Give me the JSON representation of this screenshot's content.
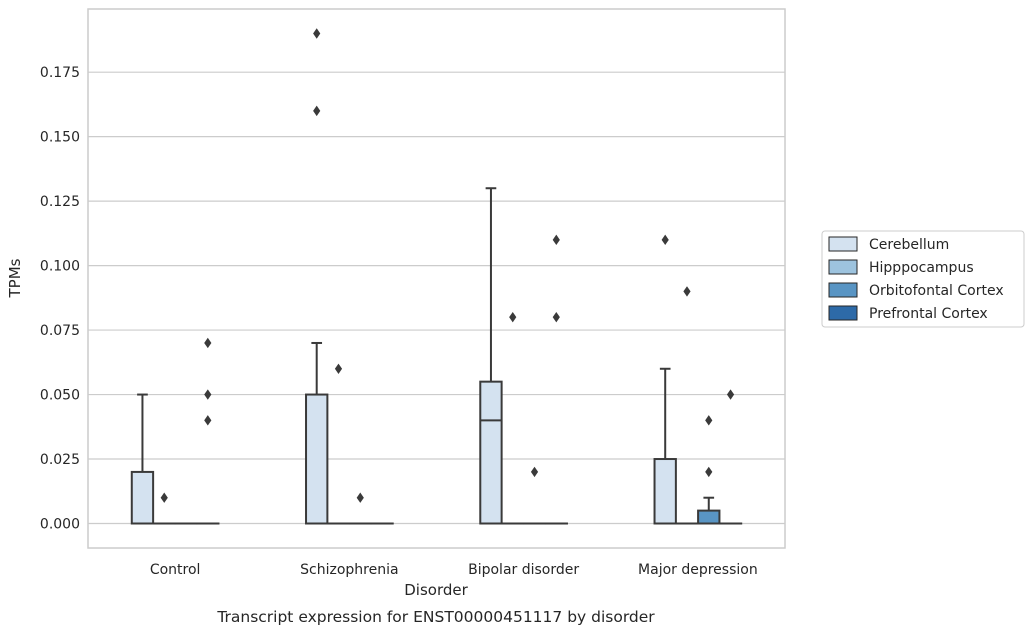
{
  "chart_data": {
    "type": "boxplot",
    "xlabel": "Disorder",
    "ylabel": "TPMs",
    "caption": "Transcript expression for ENST00000451117 by disorder",
    "ylim": [
      -0.0095,
      0.1995
    ],
    "yticks": [
      0.0,
      0.025,
      0.05,
      0.075,
      0.1,
      0.125,
      0.15,
      0.175
    ],
    "ytick_labels": [
      "0.000",
      "0.025",
      "0.050",
      "0.075",
      "0.100",
      "0.125",
      "0.150",
      "0.175"
    ],
    "grid": "horizontal",
    "legend_position": "right",
    "categories": [
      "Control",
      "Schizophrenia",
      "Bipolar disorder",
      "Major depression"
    ],
    "series": [
      {
        "name": "Cerebellum",
        "color": "#d4e2f0",
        "boxes": [
          {
            "q1": 0.0,
            "median": 0.0,
            "q3": 0.02,
            "whisker_low": 0.0,
            "whisker_high": 0.05,
            "outliers": []
          },
          {
            "q1": 0.0,
            "median": 0.0,
            "q3": 0.05,
            "whisker_low": 0.0,
            "whisker_high": 0.07,
            "outliers": [
              0.19,
              0.16
            ]
          },
          {
            "q1": 0.0,
            "median": 0.04,
            "q3": 0.055,
            "whisker_low": 0.0,
            "whisker_high": 0.13,
            "outliers": []
          },
          {
            "q1": 0.0,
            "median": 0.0,
            "q3": 0.025,
            "whisker_low": 0.0,
            "whisker_high": 0.06,
            "outliers": [
              0.11
            ]
          }
        ]
      },
      {
        "name": "Hipppocampus",
        "color": "#9dc3de",
        "boxes": [
          {
            "q1": 0.0,
            "median": 0.0,
            "q3": 0.0,
            "whisker_low": 0.0,
            "whisker_high": 0.0,
            "outliers": [
              0.01
            ]
          },
          {
            "q1": 0.0,
            "median": 0.0,
            "q3": 0.0,
            "whisker_low": 0.0,
            "whisker_high": 0.0,
            "outliers": [
              0.06
            ]
          },
          {
            "q1": 0.0,
            "median": 0.0,
            "q3": 0.0,
            "whisker_low": 0.0,
            "whisker_high": 0.0,
            "outliers": [
              0.08
            ]
          },
          {
            "q1": 0.0,
            "median": 0.0,
            "q3": 0.0,
            "whisker_low": 0.0,
            "whisker_high": 0.0,
            "outliers": [
              0.09
            ]
          }
        ]
      },
      {
        "name": "Orbitofontal Cortex",
        "color": "#5995c4",
        "boxes": [
          {
            "q1": 0.0,
            "median": 0.0,
            "q3": 0.0,
            "whisker_low": 0.0,
            "whisker_high": 0.0,
            "outliers": []
          },
          {
            "q1": 0.0,
            "median": 0.0,
            "q3": 0.0,
            "whisker_low": 0.0,
            "whisker_high": 0.0,
            "outliers": [
              0.01
            ]
          },
          {
            "q1": 0.0,
            "median": 0.0,
            "q3": 0.0,
            "whisker_low": 0.0,
            "whisker_high": 0.0,
            "outliers": [
              0.02
            ]
          },
          {
            "q1": 0.0,
            "median": 0.0,
            "q3": 0.005,
            "whisker_low": 0.0,
            "whisker_high": 0.01,
            "outliers": [
              0.04,
              0.02
            ]
          }
        ]
      },
      {
        "name": "Prefrontal Cortex",
        "color": "#2d6aa8",
        "boxes": [
          {
            "q1": 0.0,
            "median": 0.0,
            "q3": 0.0,
            "whisker_low": 0.0,
            "whisker_high": 0.0,
            "outliers": [
              0.07,
              0.05,
              0.04
            ]
          },
          {
            "q1": 0.0,
            "median": 0.0,
            "q3": 0.0,
            "whisker_low": 0.0,
            "whisker_high": 0.0,
            "outliers": []
          },
          {
            "q1": 0.0,
            "median": 0.0,
            "q3": 0.0,
            "whisker_low": 0.0,
            "whisker_high": 0.0,
            "outliers": [
              0.11,
              0.08
            ]
          },
          {
            "q1": 0.0,
            "median": 0.0,
            "q3": 0.0,
            "whisker_low": 0.0,
            "whisker_high": 0.0,
            "outliers": [
              0.05
            ]
          }
        ]
      }
    ]
  }
}
